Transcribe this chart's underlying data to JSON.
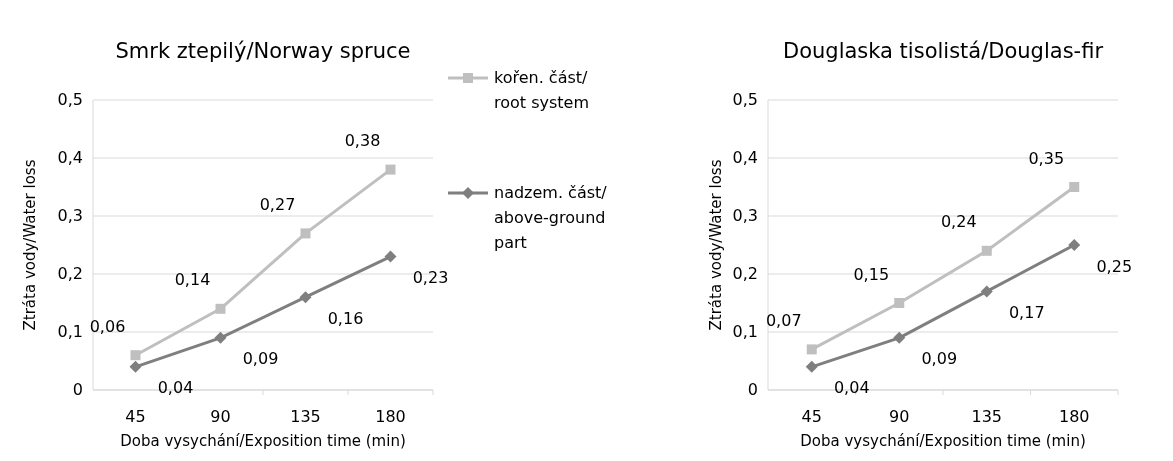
{
  "chart_data": [
    {
      "type": "line",
      "title": "Smrk ztepilý/Norway spruce",
      "xlabel": "Doba vysychání/Exposition time (min)",
      "ylabel": "Ztráta vody/Water loss",
      "categories": [
        "45",
        "90",
        "135",
        "180"
      ],
      "ylim": [
        0,
        0.5
      ],
      "yticks": [
        0,
        {
          "value": 0.1,
          "label": "0,1"
        },
        {
          "value": 0.2,
          "label": "0,2"
        },
        {
          "value": 0.3,
          "label": "0,3"
        },
        {
          "value": 0.4,
          "label": "0,4"
        },
        {
          "value": 0.5,
          "label": "0,5"
        }
      ],
      "grid": "y",
      "legend": "right",
      "series": [
        {
          "name": "kořen. část/ root system",
          "color": "#bfbfbf",
          "marker": "square",
          "values": [
            0.06,
            0.14,
            0.27,
            0.38
          ],
          "value_labels": [
            "0,06",
            "0,14",
            "0,27",
            "0,38"
          ]
        },
        {
          "name": "nadzem. část/ above-ground part",
          "color": "#7f7f7f",
          "marker": "diamond",
          "values": [
            0.04,
            0.09,
            0.16,
            0.23
          ],
          "value_labels": [
            "0,04",
            "0,09",
            "0,16",
            "0,23"
          ]
        }
      ]
    },
    {
      "type": "line",
      "title": "Douglaska tisolistá/Douglas-fir",
      "xlabel": "Doba vysychání/Exposition time (min)",
      "ylabel": "Ztráta vody/Water loss",
      "categories": [
        "45",
        "90",
        "135",
        "180"
      ],
      "ylim": [
        0,
        0.5
      ],
      "yticks": [
        0,
        {
          "value": 0.1,
          "label": "0,1"
        },
        {
          "value": 0.2,
          "label": "0,2"
        },
        {
          "value": 0.3,
          "label": "0,3"
        },
        {
          "value": 0.4,
          "label": "0,4"
        },
        {
          "value": 0.5,
          "label": "0,5"
        }
      ],
      "grid": "y",
      "series": [
        {
          "color": "#bfbfbf",
          "marker": "square",
          "values": [
            0.07,
            0.15,
            0.24,
            0.35
          ],
          "value_labels": [
            "0,07",
            "0,15",
            "0,24",
            "0,35"
          ]
        },
        {
          "color": "#7f7f7f",
          "marker": "diamond",
          "values": [
            0.04,
            0.09,
            0.17,
            0.25
          ],
          "value_labels": [
            "0,04",
            "0,09",
            "0,17",
            "0,25"
          ]
        }
      ]
    }
  ]
}
